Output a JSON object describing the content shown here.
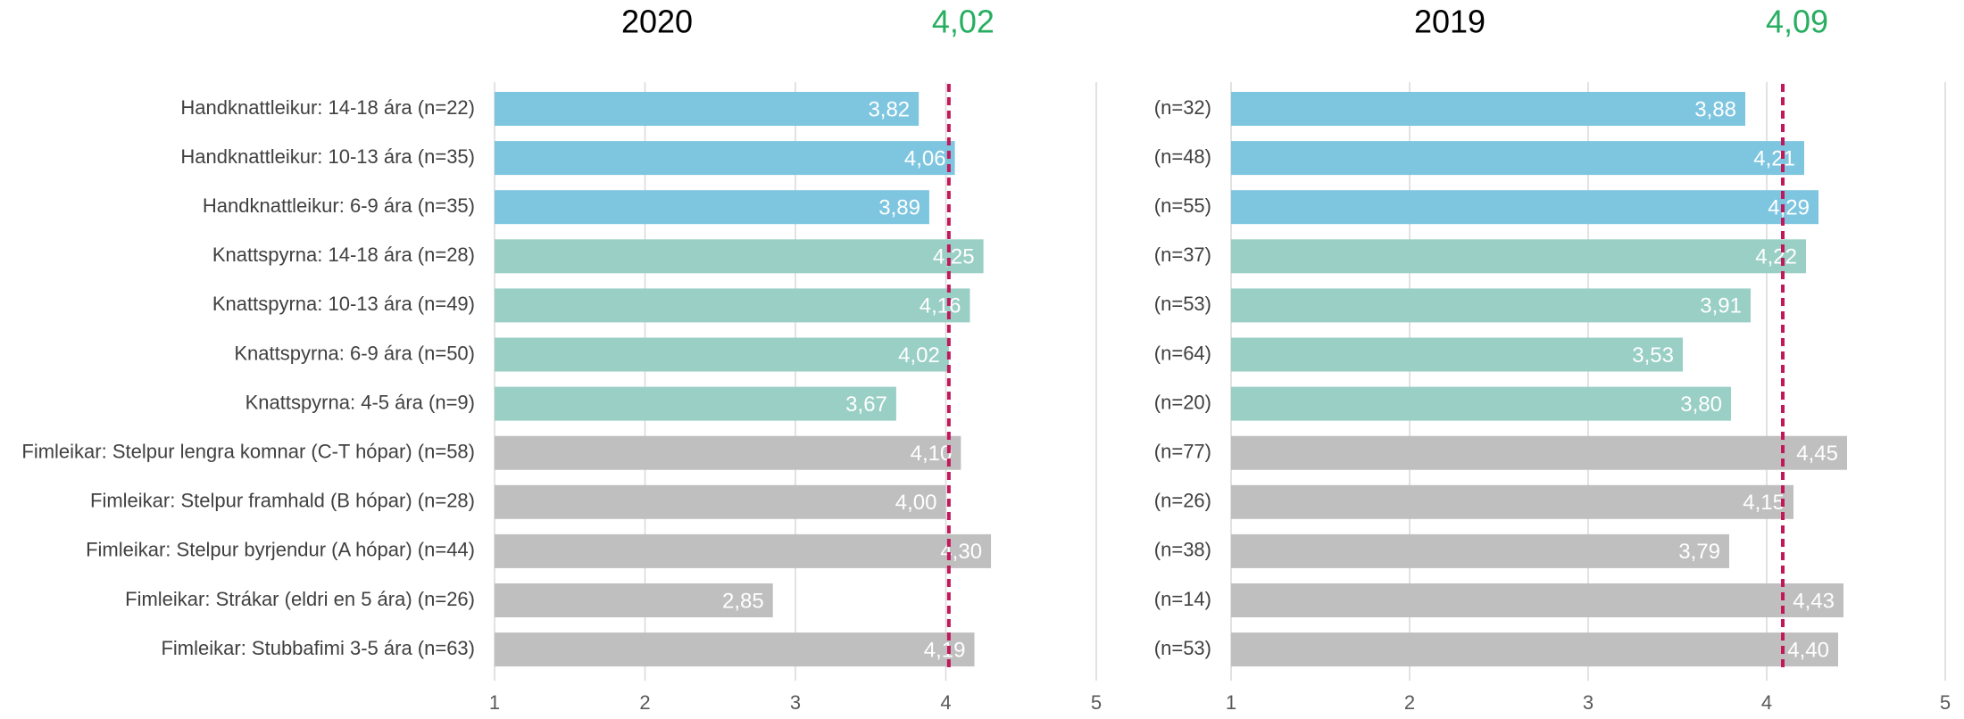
{
  "chart_data": [
    {
      "type": "barh",
      "title": "2020",
      "average": {
        "value": 4.02,
        "label": "4,02"
      },
      "average_color": "#c2185b",
      "average_label_color": "#27ae60",
      "categories": [
        "Handknattleikur: 14-18 ára (n=22)",
        "Handknattleikur: 10-13 ára (n=35)",
        "Handknattleikur: 6-9 ára (n=35)",
        "Knattspyrna: 14-18 ára (n=28)",
        "Knattspyrna: 10-13 ára (n=49)",
        "Knattspyrna: 6-9 ára (n=50)",
        "Knattspyrna: 4-5 ára (n=9)",
        "Fimleikar: Stelpur lengra komnar (C-T hópar) (n=58)",
        "Fimleikar: Stelpur framhald (B hópar) (n=28)",
        "Fimleikar: Stelpur byrjendur (A hópar) (n=44)",
        "Fimleikar: Strákar (eldri en 5 ára) (n=26)",
        "Fimleikar: Stubbafimi 3-5 ára (n=63)"
      ],
      "values": [
        3.82,
        4.06,
        3.89,
        4.25,
        4.16,
        4.02,
        3.67,
        4.1,
        4.0,
        4.3,
        2.85,
        4.19
      ],
      "value_labels": [
        "3,82",
        "4,06",
        "3,89",
        "4,25",
        "4,16",
        "4,02",
        "3,67",
        "4,10",
        "4,00",
        "4,30",
        "2,85",
        "4,19"
      ],
      "colors": [
        "#7ec6e0",
        "#7ec6e0",
        "#7ec6e0",
        "#99cfc5",
        "#99cfc5",
        "#99cfc5",
        "#99cfc5",
        "#bfbfbf",
        "#bfbfbf",
        "#bfbfbf",
        "#bfbfbf",
        "#bfbfbf"
      ],
      "xlim": [
        1,
        5
      ],
      "xticks": [
        1,
        2,
        3,
        4,
        5
      ],
      "grid": true
    },
    {
      "type": "barh",
      "title": "2019",
      "average": {
        "value": 4.09,
        "label": "4,09"
      },
      "average_color": "#c2185b",
      "average_label_color": "#27ae60",
      "categories": [
        "(n=32)",
        "(n=48)",
        "(n=55)",
        "(n=37)",
        "(n=53)",
        "(n=64)",
        "(n=20)",
        "(n=77)",
        "(n=26)",
        "(n=38)",
        "(n=14)",
        "(n=53)"
      ],
      "values": [
        3.88,
        4.21,
        4.29,
        4.22,
        3.91,
        3.53,
        3.8,
        4.45,
        4.15,
        3.79,
        4.43,
        4.4
      ],
      "value_labels": [
        "3,88",
        "4,21",
        "4,29",
        "4,22",
        "3,91",
        "3,53",
        "3,80",
        "4,45",
        "4,15",
        "3,79",
        "4,43",
        "4,40"
      ],
      "colors": [
        "#7ec6e0",
        "#7ec6e0",
        "#7ec6e0",
        "#99cfc5",
        "#99cfc5",
        "#99cfc5",
        "#99cfc5",
        "#bfbfbf",
        "#bfbfbf",
        "#bfbfbf",
        "#bfbfbf",
        "#bfbfbf"
      ],
      "xlim": [
        1,
        5
      ],
      "xticks": [
        1,
        2,
        3,
        4,
        5
      ],
      "grid": true
    }
  ]
}
